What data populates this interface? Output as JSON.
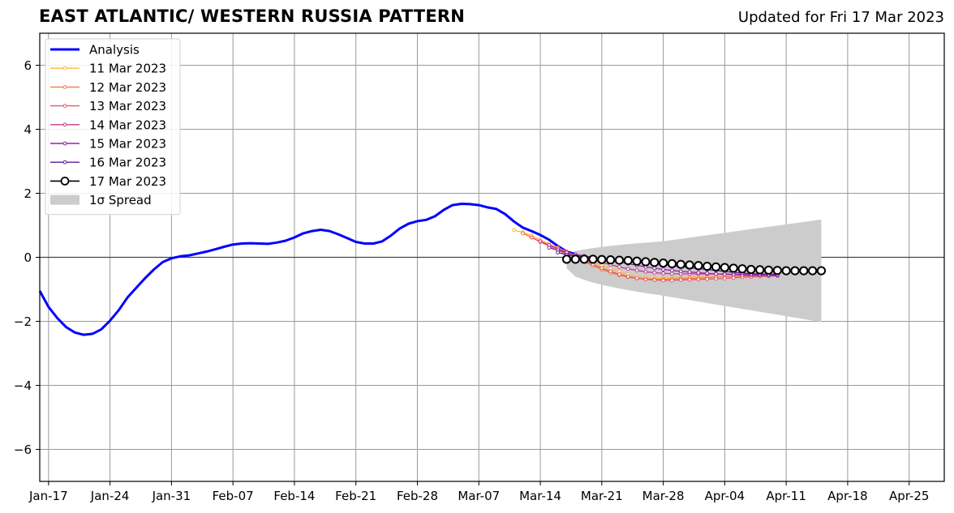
{
  "title": "EAST ATLANTIC/ WESTERN RUSSIA PATTERN",
  "updated": "Updated for Fri 17 Mar 2023",
  "colors": {
    "analysis": "#0000ff",
    "spread": "#cccccc",
    "grid": "#9a9a9a",
    "zero_line": "#444444"
  },
  "chart_data": {
    "type": "line",
    "title": "EAST ATLANTIC/ WESTERN RUSSIA PATTERN",
    "xlabel": "",
    "ylabel": "",
    "x_start": "2023-01-16",
    "xlim": [
      "2023-01-16",
      "2023-04-29"
    ],
    "ylim": [
      -7,
      7
    ],
    "grid": true,
    "legend_placement": "top-left",
    "x_ticks": [
      {
        "date": "2023-01-17",
        "label": "Jan-17"
      },
      {
        "date": "2023-01-24",
        "label": "Jan-24"
      },
      {
        "date": "2023-01-31",
        "label": "Jan-31"
      },
      {
        "date": "2023-02-07",
        "label": "Feb-07"
      },
      {
        "date": "2023-02-14",
        "label": "Feb-14"
      },
      {
        "date": "2023-02-21",
        "label": "Feb-21"
      },
      {
        "date": "2023-02-28",
        "label": "Feb-28"
      },
      {
        "date": "2023-03-07",
        "label": "Mar-07"
      },
      {
        "date": "2023-03-14",
        "label": "Mar-14"
      },
      {
        "date": "2023-03-21",
        "label": "Mar-21"
      },
      {
        "date": "2023-03-28",
        "label": "Mar-28"
      },
      {
        "date": "2023-04-04",
        "label": "Apr-04"
      },
      {
        "date": "2023-04-11",
        "label": "Apr-11"
      },
      {
        "date": "2023-04-18",
        "label": "Apr-18"
      },
      {
        "date": "2023-04-25",
        "label": "Apr-25"
      }
    ],
    "y_ticks": [
      {
        "value": 6,
        "label": "6"
      },
      {
        "value": 4,
        "label": "4"
      },
      {
        "value": 2,
        "label": "2"
      },
      {
        "value": 0,
        "label": "0"
      },
      {
        "value": -2,
        "label": "−2"
      },
      {
        "value": -4,
        "label": "−4"
      },
      {
        "value": -6,
        "label": "−6"
      }
    ],
    "analysis": {
      "name": "Analysis",
      "color": "#0000ff",
      "start_date": "2023-01-16",
      "values": [
        -1.05,
        -1.55,
        -1.9,
        -2.18,
        -2.35,
        -2.42,
        -2.39,
        -2.25,
        -1.98,
        -1.65,
        -1.25,
        -0.95,
        -0.65,
        -0.38,
        -0.15,
        -0.03,
        0.03,
        0.06,
        0.12,
        0.18,
        0.25,
        0.33,
        0.4,
        0.43,
        0.44,
        0.43,
        0.42,
        0.46,
        0.52,
        0.62,
        0.75,
        0.82,
        0.86,
        0.82,
        0.72,
        0.6,
        0.48,
        0.43,
        0.43,
        0.5,
        0.68,
        0.9,
        1.05,
        1.13,
        1.17,
        1.28,
        1.48,
        1.63,
        1.67,
        1.66,
        1.63,
        1.56,
        1.51,
        1.35,
        1.12,
        0.93,
        0.82,
        0.7,
        0.55,
        0.35,
        0.18,
        0.1
      ]
    },
    "forecasts": [
      {
        "name": "11 Mar 2023",
        "color": "#ffb63c",
        "start_date": "2023-03-11",
        "values": [
          0.85,
          0.78,
          0.68,
          0.55,
          0.42,
          0.3,
          0.18,
          0.06,
          -0.05,
          -0.15,
          -0.25,
          -0.35,
          -0.45,
          -0.53,
          -0.6,
          -0.64,
          -0.66,
          -0.66,
          -0.65,
          -0.64,
          -0.62,
          -0.6,
          -0.58,
          -0.56,
          -0.55,
          -0.54,
          -0.53,
          -0.52,
          -0.51,
          -0.5,
          -0.5
        ]
      },
      {
        "name": "12 Mar 2023",
        "color": "#f47e3c",
        "start_date": "2023-03-12",
        "values": [
          0.75,
          0.62,
          0.48,
          0.35,
          0.22,
          0.1,
          -0.02,
          -0.14,
          -0.26,
          -0.38,
          -0.48,
          -0.56,
          -0.62,
          -0.66,
          -0.68,
          -0.69,
          -0.69,
          -0.68,
          -0.67,
          -0.66,
          -0.65,
          -0.64,
          -0.62,
          -0.61,
          -0.6,
          -0.59,
          -0.58,
          -0.57,
          -0.56,
          -0.55
        ]
      },
      {
        "name": "13 Mar 2023",
        "color": "#e05a6e",
        "start_date": "2023-03-13",
        "values": [
          0.62,
          0.5,
          0.38,
          0.26,
          0.14,
          0.02,
          -0.1,
          -0.22,
          -0.34,
          -0.44,
          -0.53,
          -0.6,
          -0.65,
          -0.69,
          -0.71,
          -0.72,
          -0.72,
          -0.71,
          -0.7,
          -0.69,
          -0.68,
          -0.67,
          -0.66,
          -0.64,
          -0.62,
          -0.61,
          -0.6,
          -0.59,
          -0.58
        ]
      },
      {
        "name": "14 Mar 2023",
        "color": "#c03c8c",
        "start_date": "2023-03-14",
        "values": [
          0.5,
          0.38,
          0.27,
          0.17,
          0.08,
          0.0,
          -0.08,
          -0.16,
          -0.23,
          -0.3,
          -0.36,
          -0.41,
          -0.45,
          -0.48,
          -0.5,
          -0.51,
          -0.52,
          -0.52,
          -0.52,
          -0.52,
          -0.52,
          -0.52,
          -0.53,
          -0.53,
          -0.53,
          -0.53,
          -0.53,
          -0.52
        ]
      },
      {
        "name": "15 Mar 2023",
        "color": "#9a1fa8",
        "start_date": "2023-03-15",
        "values": [
          0.3,
          0.22,
          0.15,
          0.09,
          0.04,
          0.0,
          -0.05,
          -0.1,
          -0.15,
          -0.2,
          -0.25,
          -0.3,
          -0.34,
          -0.38,
          -0.41,
          -0.44,
          -0.46,
          -0.48,
          -0.5,
          -0.52,
          -0.53,
          -0.54,
          -0.55,
          -0.56,
          -0.56,
          -0.57,
          -0.57
        ]
      },
      {
        "name": "16 Mar 2023",
        "color": "#5a189a",
        "start_date": "2023-03-16",
        "values": [
          0.15,
          0.08,
          0.04,
          0.01,
          -0.02,
          -0.04,
          -0.06,
          -0.08,
          -0.1,
          -0.13,
          -0.16,
          -0.19,
          -0.22,
          -0.26,
          -0.29,
          -0.32,
          -0.35,
          -0.38,
          -0.41,
          -0.44,
          -0.47,
          -0.49,
          -0.51,
          -0.52,
          -0.53,
          -0.54
        ]
      },
      {
        "name": "17 Mar 2023",
        "color": "#000000",
        "start_date": "2023-03-17",
        "markers": "open-circle",
        "values": [
          -0.06,
          -0.06,
          -0.06,
          -0.06,
          -0.07,
          -0.08,
          -0.09,
          -0.1,
          -0.12,
          -0.14,
          -0.16,
          -0.18,
          -0.2,
          -0.22,
          -0.24,
          -0.26,
          -0.28,
          -0.3,
          -0.32,
          -0.34,
          -0.36,
          -0.38,
          -0.39,
          -0.4,
          -0.41,
          -0.42,
          -0.42,
          -0.42,
          -0.42,
          -0.42
        ]
      }
    ],
    "spread": {
      "name": "1σ Spread",
      "color": "#cccccc",
      "start_date": "2023-03-17",
      "end_date": "2023-04-15",
      "upper": [
        0.06,
        0.5,
        1.18
      ],
      "lower": [
        -0.34,
        -1.2,
        -2.02
      ],
      "at_dates": [
        "2023-03-17",
        "2023-03-28",
        "2023-04-15"
      ]
    },
    "legend": [
      {
        "label": "Analysis",
        "color": "#0000ff",
        "style": "thick"
      },
      {
        "label": "11 Mar 2023",
        "color": "#ffb63c",
        "style": "small-marker"
      },
      {
        "label": "12 Mar 2023",
        "color": "#f47e3c",
        "style": "small-marker"
      },
      {
        "label": "13 Mar 2023",
        "color": "#e05a6e",
        "style": "small-marker"
      },
      {
        "label": "14 Mar 2023",
        "color": "#c03c8c",
        "style": "small-marker"
      },
      {
        "label": "15 Mar 2023",
        "color": "#9a1fa8",
        "style": "small-marker"
      },
      {
        "label": "16 Mar 2023",
        "color": "#5a189a",
        "style": "small-marker"
      },
      {
        "label": "17 Mar 2023",
        "color": "#000000",
        "style": "open-circle"
      },
      {
        "label": "1σ Spread",
        "color": "#cccccc",
        "style": "patch"
      }
    ]
  }
}
